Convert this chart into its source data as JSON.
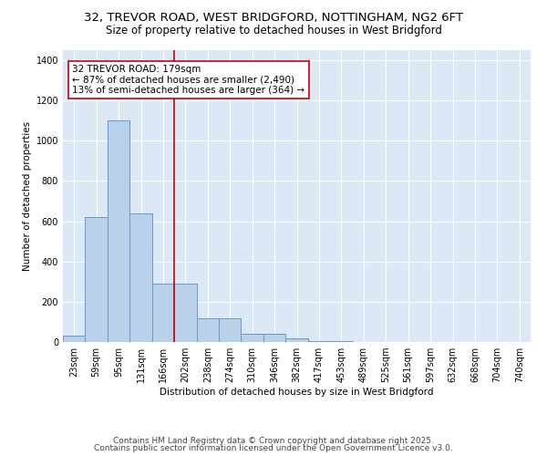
{
  "title_line1": "32, TREVOR ROAD, WEST BRIDGFORD, NOTTINGHAM, NG2 6FT",
  "title_line2": "Size of property relative to detached houses in West Bridgford",
  "xlabel": "Distribution of detached houses by size in West Bridgford",
  "ylabel": "Number of detached properties",
  "categories": [
    "23sqm",
    "59sqm",
    "95sqm",
    "131sqm",
    "166sqm",
    "202sqm",
    "238sqm",
    "274sqm",
    "310sqm",
    "346sqm",
    "382sqm",
    "417sqm",
    "453sqm",
    "489sqm",
    "525sqm",
    "561sqm",
    "597sqm",
    "632sqm",
    "668sqm",
    "704sqm",
    "740sqm"
  ],
  "values": [
    30,
    620,
    1100,
    640,
    290,
    290,
    120,
    120,
    40,
    40,
    20,
    5,
    5,
    0,
    0,
    0,
    0,
    0,
    0,
    0,
    0
  ],
  "bar_color": "#b8d0e8",
  "bar_edge_color": "#6699cc",
  "vline_x": 4.5,
  "vline_color": "#cc0000",
  "annotation_text": "32 TREVOR ROAD: 179sqm\n← 87% of detached houses are smaller (2,490)\n13% of semi-detached houses are larger (364) →",
  "annotation_box_facecolor": "#ffffff",
  "annotation_box_edgecolor": "#cc0000",
  "ylim": [
    0,
    1450
  ],
  "yticks": [
    0,
    200,
    400,
    600,
    800,
    1000,
    1200,
    1400
  ],
  "plot_bg_color": "#dce8f5",
  "fig_bg_color": "#ffffff",
  "grid_color": "#ffffff",
  "footer_line1": "Contains HM Land Registry data © Crown copyright and database right 2025.",
  "footer_line2": "Contains public sector information licensed under the Open Government Licence v3.0.",
  "title_fontsize": 9.5,
  "subtitle_fontsize": 8.5,
  "annotation_fontsize": 7.5,
  "axis_label_fontsize": 7.5,
  "tick_fontsize": 7.0,
  "footer_fontsize": 6.5
}
